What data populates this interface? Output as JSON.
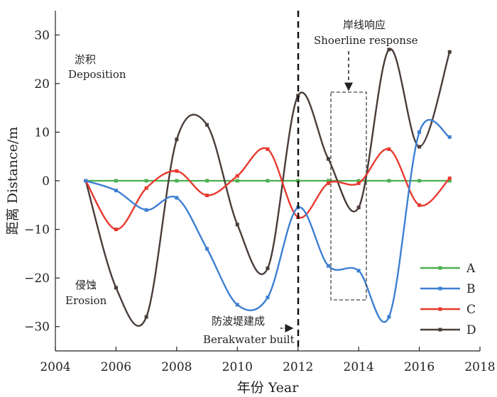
{
  "chart_data": {
    "type": "line",
    "xlabel": "年份 Year",
    "ylabel": "距离 Distance/m",
    "xlim": [
      2004,
      2018
    ],
    "ylim": [
      -35,
      35
    ],
    "xticks": [
      "2004",
      "2006",
      "2008",
      "2010",
      "2012",
      "2014",
      "2016",
      "2018"
    ],
    "yticks": [
      "−30",
      "−20",
      "−10",
      "0",
      "10",
      "20",
      "30"
    ],
    "x": [
      2005,
      2006,
      2007,
      2008,
      2009,
      2010,
      2011,
      2012,
      2013,
      2014,
      2015,
      2016,
      2017
    ],
    "series": [
      {
        "name": "A",
        "color": "#4caf50",
        "values": [
          0,
          0,
          0,
          0,
          0,
          0,
          0,
          0,
          0,
          0,
          0,
          0,
          0
        ]
      },
      {
        "name": "B",
        "color": "#3d7fd1",
        "values": [
          0,
          -2,
          -6,
          -3.5,
          -14,
          -25.5,
          -24,
          -5.5,
          -17.5,
          -18.5,
          -28,
          10,
          9
        ]
      },
      {
        "name": "C",
        "color": "#e8392e",
        "values": [
          0,
          -10,
          -1.5,
          2,
          -3,
          1,
          6.5,
          -7.5,
          -0.5,
          -0.5,
          6.5,
          -5,
          0.5
        ]
      },
      {
        "name": "D",
        "color": "#4a3c38",
        "values": [
          0,
          -22,
          -28,
          8.5,
          11.5,
          -9,
          -18,
          17.5,
          4.5,
          -5.5,
          27,
          7,
          26.5
        ]
      }
    ],
    "annotations": {
      "deposition_cn": "淤积",
      "deposition_en": "Deposition",
      "erosion_cn": "侵蚀",
      "erosion_en": "Erosion",
      "breakwater_cn": "防波堤建成",
      "breakwater_en": "Berakwater built",
      "response_cn": "岸线响应",
      "response_en": "Shoerline response"
    },
    "legend_position": "bottom-right",
    "grid": false
  }
}
